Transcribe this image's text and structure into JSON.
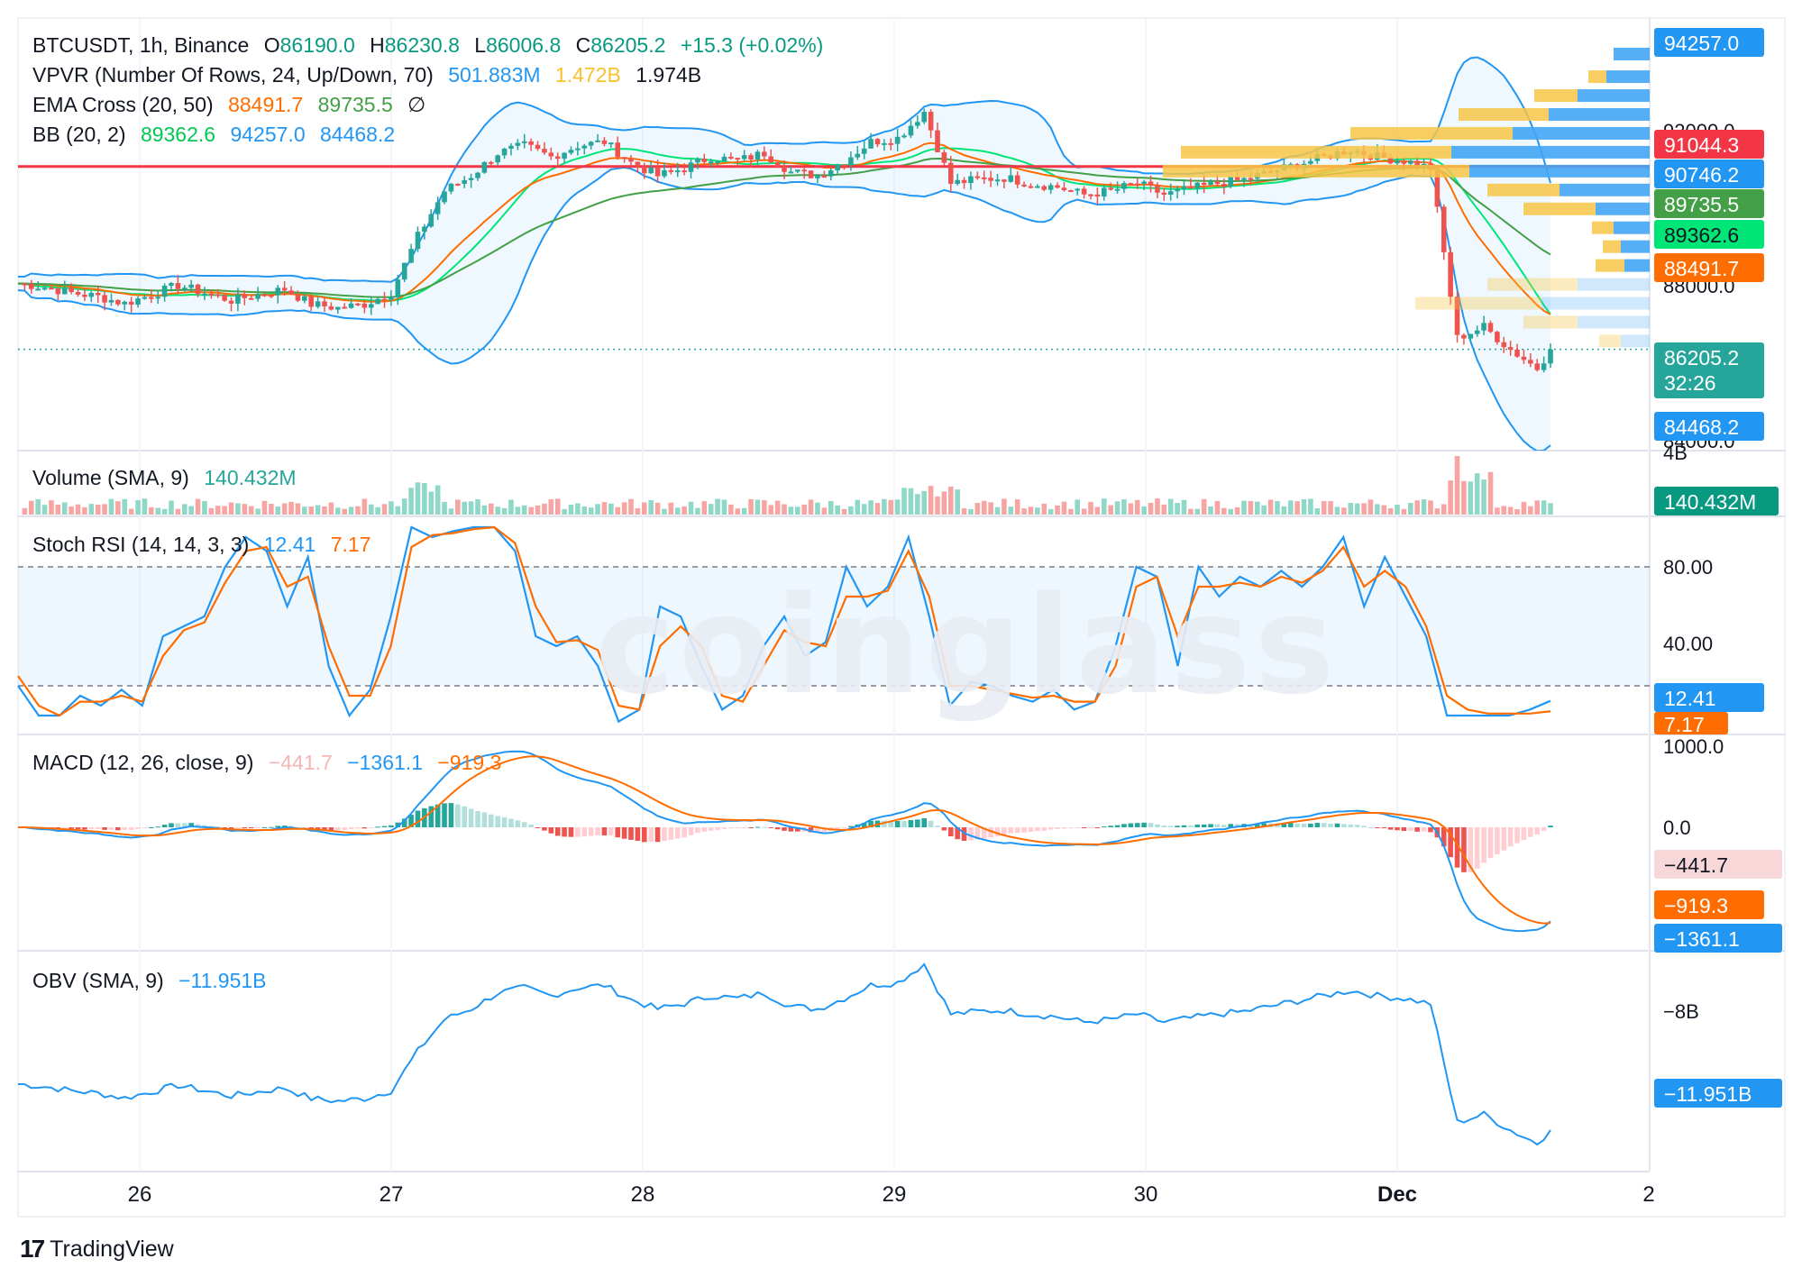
{
  "header": {
    "symbol": "BTCUSDT, 1h, Binance",
    "o_label": "O",
    "o": "86190.0",
    "h_label": "H",
    "h": "86230.8",
    "l_label": "L",
    "l": "86006.8",
    "c_label": "C",
    "c": "86205.2",
    "change": "+15.3 (+0.02%)"
  },
  "indicators": {
    "vpvr": {
      "name": "VPVR (Number Of Rows, 24, Up/Down, 70)",
      "v1": "501.883M",
      "v2": "1.472B",
      "v3": "1.974B"
    },
    "ema": {
      "name": "EMA Cross (20, 50)",
      "v1": "88491.7",
      "v2": "89735.5",
      "icon": "∅"
    },
    "bb": {
      "name": "BB (20, 2)",
      "v1": "89362.6",
      "v2": "94257.0",
      "v3": "84468.2"
    },
    "volume": {
      "name": "Volume (SMA, 9)",
      "v1": "140.432M"
    },
    "stoch": {
      "name": "Stoch RSI (14, 14, 3, 3)",
      "v1": "12.41",
      "v2": "7.17"
    },
    "macd": {
      "name": "MACD (12, 26, close, 9)",
      "v1": "−441.7",
      "v2": "−1361.1",
      "v3": "−919.3"
    },
    "obv": {
      "name": "OBV (SMA, 9)",
      "v1": "−11.951B"
    }
  },
  "colors": {
    "up": "#26a69a",
    "down": "#ef5350",
    "bb": "#2196f3",
    "ema20": "#ff6d00",
    "ema50": "#43a047",
    "bbmid": "#00e676",
    "hline": "#f23645",
    "stochK": "#2196f3",
    "stochD": "#ff6d00"
  },
  "chart_data": [
    {
      "type": "candlestick",
      "title": "BTCUSDT, 1h, Binance",
      "x_tick_labels": [
        "26",
        "27",
        "28",
        "29",
        "30",
        "Dec",
        "2"
      ],
      "y_tick_labels": [
        "92000.0",
        "88000.0",
        "84000.0"
      ],
      "ylim": [
        84000,
        94500
      ],
      "last": {
        "open": 86190.0,
        "high": 86230.8,
        "low": 86006.8,
        "close": 86205.2,
        "change": 15.3,
        "change_pct": 0.02
      },
      "countdown": "32:26",
      "horizontal_line": 91044.3,
      "price_labels": [
        "94257.0",
        "91044.3",
        "90746.2",
        "89735.5",
        "89362.6",
        "88491.7",
        "86205.2",
        "84468.2"
      ],
      "series": [
        {
          "name": "EMA 20",
          "last": 88491.7
        },
        {
          "name": "EMA 50",
          "last": 89735.5
        },
        {
          "name": "BB basis",
          "last": 89362.6
        },
        {
          "name": "BB upper",
          "last": 94257.0
        },
        {
          "name": "BB lower",
          "last": 84468.2
        }
      ],
      "close_path_approx": [
        [
          0,
          87950
        ],
        [
          4,
          87850
        ],
        [
          8,
          87700
        ],
        [
          12,
          87600
        ],
        [
          16,
          87420
        ],
        [
          20,
          87650
        ],
        [
          24,
          87900
        ],
        [
          28,
          87700
        ],
        [
          32,
          87500
        ],
        [
          36,
          87650
        ],
        [
          40,
          87800
        ],
        [
          44,
          87400
        ],
        [
          48,
          87300
        ],
        [
          52,
          87400
        ],
        [
          56,
          87700
        ],
        [
          60,
          89200
        ],
        [
          64,
          90400
        ],
        [
          68,
          90800
        ],
        [
          72,
          91400
        ],
        [
          76,
          91600
        ],
        [
          80,
          91300
        ],
        [
          84,
          91600
        ],
        [
          88,
          91700
        ],
        [
          92,
          91150
        ],
        [
          96,
          90800
        ],
        [
          100,
          91000
        ],
        [
          104,
          91300
        ],
        [
          108,
          91200
        ],
        [
          112,
          91400
        ],
        [
          116,
          90900
        ],
        [
          120,
          90800
        ],
        [
          124,
          91200
        ],
        [
          128,
          91700
        ],
        [
          132,
          91800
        ],
        [
          136,
          92500
        ],
        [
          140,
          90600
        ],
        [
          144,
          90700
        ],
        [
          148,
          90750
        ],
        [
          152,
          90600
        ],
        [
          156,
          90500
        ],
        [
          160,
          90300
        ],
        [
          164,
          90400
        ],
        [
          168,
          90600
        ],
        [
          172,
          90300
        ],
        [
          176,
          90450
        ],
        [
          180,
          90600
        ],
        [
          184,
          90700
        ],
        [
          188,
          90900
        ],
        [
          192,
          91100
        ],
        [
          196,
          91300
        ],
        [
          200,
          91500
        ],
        [
          204,
          91300
        ],
        [
          208,
          91200
        ],
        [
          212,
          91000
        ],
        [
          216,
          86500
        ],
        [
          220,
          86800
        ],
        [
          224,
          86200
        ],
        [
          228,
          85700
        ],
        [
          230,
          86205
        ]
      ]
    },
    {
      "type": "bar",
      "title": "Volume (SMA, 9)",
      "last": "140.432M",
      "y_tick_labels": [
        "4B"
      ]
    },
    {
      "type": "line",
      "title": "Stoch RSI (14, 14, 3, 3)",
      "ylim": [
        0,
        100
      ],
      "y_tick_labels": [
        "80.00",
        "40.00"
      ],
      "bands": [
        20,
        80
      ],
      "series": [
        {
          "name": "K",
          "last": 12.41,
          "values": [
            20,
            5,
            5,
            15,
            10,
            18,
            10,
            45,
            50,
            55,
            80,
            95,
            88,
            60,
            85,
            30,
            5,
            18,
            55,
            100,
            95,
            98,
            100,
            100,
            88,
            45,
            40,
            45,
            30,
            2,
            8,
            60,
            55,
            30,
            8,
            15,
            40,
            55,
            35,
            42,
            80,
            60,
            70,
            95,
            55,
            10,
            22,
            20,
            15,
            12,
            18,
            8,
            12,
            40,
            80,
            75,
            30,
            80,
            65,
            75,
            70,
            78,
            70,
            80,
            95,
            60,
            85,
            65,
            45,
            5,
            5,
            5,
            5,
            8,
            12.41
          ]
        },
        {
          "name": "D",
          "last": 7.17,
          "values": [
            25,
            10,
            5,
            12,
            12,
            15,
            12,
            35,
            48,
            52,
            72,
            88,
            90,
            70,
            75,
            40,
            15,
            15,
            40,
            90,
            96,
            97,
            99,
            100,
            92,
            60,
            42,
            43,
            38,
            10,
            8,
            40,
            50,
            40,
            15,
            12,
            30,
            48,
            42,
            40,
            65,
            65,
            68,
            88,
            65,
            20,
            20,
            18,
            16,
            14,
            15,
            12,
            12,
            30,
            70,
            75,
            45,
            70,
            70,
            72,
            70,
            75,
            72,
            78,
            90,
            70,
            78,
            70,
            50,
            15,
            8,
            6,
            6,
            6,
            7.17
          ]
        }
      ]
    },
    {
      "type": "line",
      "title": "MACD (12, 26, close, 9)",
      "y_tick_labels": [
        "1000.0",
        "0.0"
      ],
      "series": [
        {
          "name": "Histogram",
          "last": -441.7
        },
        {
          "name": "MACD",
          "last": -1361.1
        },
        {
          "name": "Signal",
          "last": -919.3
        }
      ]
    },
    {
      "type": "line",
      "title": "OBV (SMA, 9)",
      "y_tick_labels": [
        "−8B"
      ],
      "series": [
        {
          "name": "OBV",
          "last": "−11.951B"
        }
      ]
    }
  ],
  "brand": "TradingView",
  "watermark": "coinglass"
}
